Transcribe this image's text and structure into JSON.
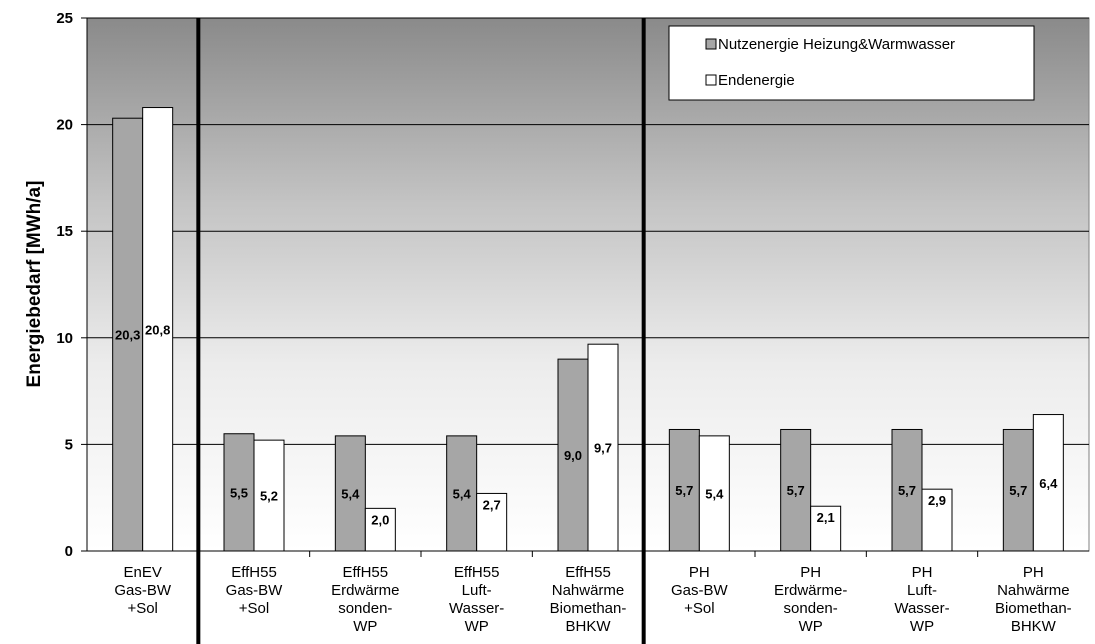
{
  "chart_data": {
    "type": "bar",
    "ylabel": "Energiebedarf [MWh/a]",
    "ylim": [
      0,
      25
    ],
    "yticks": [
      0,
      5,
      10,
      15,
      20,
      25
    ],
    "grid": true,
    "legend_position": "top-right",
    "categories": [
      [
        "EnEV",
        "Gas-BW",
        "+Sol"
      ],
      [
        "EffH55",
        "Gas-BW",
        "+Sol"
      ],
      [
        "EffH55",
        "Erdwärme",
        "sonden-",
        "WP"
      ],
      [
        "EffH55",
        "Luft-",
        "Wasser-",
        "WP"
      ],
      [
        "EffH55",
        "Nahwärme",
        "Biomethan-",
        "BHKW"
      ],
      [
        "PH",
        "Gas-BW",
        "+Sol"
      ],
      [
        "PH",
        "Erdwärme-",
        "sonden-",
        "WP"
      ],
      [
        "PH",
        "Luft-",
        "Wasser-",
        "WP"
      ],
      [
        "PH",
        "Nahwärme",
        "Biomethan-",
        "BHKW"
      ]
    ],
    "series": [
      {
        "name": "Nutzenergie Heizung&Warmwasser",
        "color": "#a6a6a6",
        "values": [
          20.3,
          5.5,
          5.4,
          5.4,
          9.0,
          5.7,
          5.7,
          5.7,
          5.7
        ],
        "labels": [
          "20,3",
          "5,5",
          "5,4",
          "5,4",
          "9,0",
          "5,7",
          "5,7",
          "5,7",
          "5,7"
        ]
      },
      {
        "name": "Endenergie",
        "color": "#ffffff",
        "values": [
          20.8,
          5.2,
          2.0,
          2.7,
          9.7,
          5.4,
          2.1,
          2.9,
          6.4
        ],
        "labels": [
          "20,8",
          "5,2",
          "2,0",
          "2,7",
          "9,7",
          "5,4",
          "2,1",
          "2,9",
          "6,4"
        ]
      }
    ],
    "group_separators_after": [
      0,
      4
    ]
  }
}
